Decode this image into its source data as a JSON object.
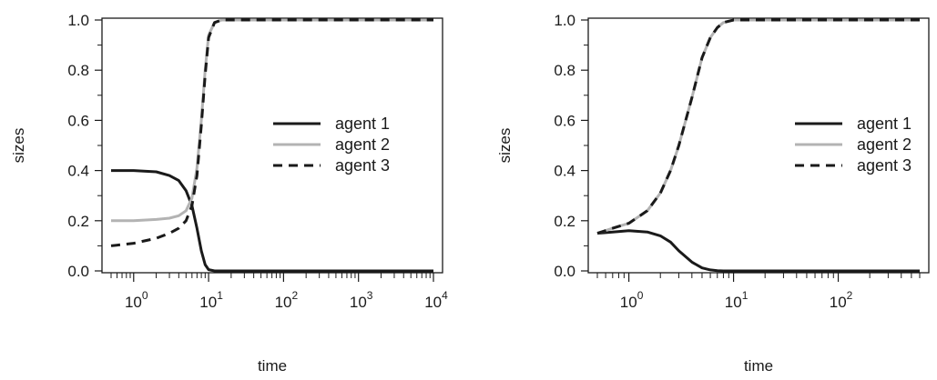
{
  "chart_data": [
    {
      "type": "line",
      "xlabel": "time",
      "ylabel": "sizes",
      "x_scale": "log10",
      "xlim": [
        0.5,
        10000
      ],
      "ylim": [
        0,
        1
      ],
      "x_major_ticks": [
        {
          "base": "10",
          "exp": "0",
          "value": 1
        },
        {
          "base": "10",
          "exp": "1",
          "value": 10
        },
        {
          "base": "10",
          "exp": "2",
          "value": 100
        },
        {
          "base": "10",
          "exp": "3",
          "value": 1000
        },
        {
          "base": "10",
          "exp": "4",
          "value": 10000
        }
      ],
      "y_ticks": [
        "0.0",
        "0.2",
        "0.4",
        "0.6",
        "0.8",
        "1.0"
      ],
      "legend_position": "right-middle",
      "series": [
        {
          "name": "agent 1",
          "color": "#1a1a1a",
          "dash": "solid",
          "x": [
            0.5,
            1,
            2,
            3,
            4,
            5,
            6,
            7,
            8,
            9,
            10,
            12,
            15,
            20,
            100,
            1000,
            10000
          ],
          "y": [
            0.4,
            0.4,
            0.395,
            0.38,
            0.36,
            0.32,
            0.26,
            0.17,
            0.08,
            0.025,
            0.005,
            0.0,
            0.0,
            0.0,
            0.0,
            0.0,
            0.0
          ]
        },
        {
          "name": "agent 2",
          "color": "#b3b3b3",
          "dash": "solid",
          "x": [
            0.5,
            1,
            2,
            3,
            4,
            5,
            6,
            7,
            8,
            9,
            10,
            12,
            15,
            20,
            100,
            1000,
            10000
          ],
          "y": [
            0.2,
            0.2,
            0.205,
            0.21,
            0.22,
            0.24,
            0.29,
            0.41,
            0.6,
            0.8,
            0.94,
            0.99,
            1.0,
            1.0,
            1.0,
            1.0,
            1.0
          ]
        },
        {
          "name": "agent 3",
          "color": "#1a1a1a",
          "dash": "dashed",
          "x": [
            0.5,
            1,
            2,
            3,
            4,
            5,
            6,
            7,
            8,
            9,
            10,
            12,
            15,
            20,
            100,
            1000,
            10000
          ],
          "y": [
            0.1,
            0.11,
            0.13,
            0.15,
            0.17,
            0.2,
            0.26,
            0.38,
            0.58,
            0.78,
            0.93,
            0.99,
            1.0,
            1.0,
            1.0,
            1.0,
            1.0
          ]
        }
      ]
    },
    {
      "type": "line",
      "xlabel": "time",
      "ylabel": "sizes",
      "x_scale": "log10",
      "xlim": [
        0.5,
        600
      ],
      "ylim": [
        0,
        1
      ],
      "x_major_ticks": [
        {
          "base": "10",
          "exp": "0",
          "value": 1
        },
        {
          "base": "10",
          "exp": "1",
          "value": 10
        },
        {
          "base": "10",
          "exp": "2",
          "value": 100
        }
      ],
      "y_ticks": [
        "0.0",
        "0.2",
        "0.4",
        "0.6",
        "0.8",
        "1.0"
      ],
      "legend_position": "right-middle",
      "series": [
        {
          "name": "agent 1",
          "color": "#1a1a1a",
          "dash": "solid",
          "x": [
            0.5,
            0.7,
            1,
            1.5,
            2,
            2.5,
            3,
            4,
            5,
            6,
            7,
            8,
            10,
            20,
            100,
            600
          ],
          "y": [
            0.15,
            0.155,
            0.16,
            0.155,
            0.14,
            0.115,
            0.08,
            0.035,
            0.012,
            0.004,
            0.001,
            0.0,
            0.0,
            0.0,
            0.0,
            0.0
          ]
        },
        {
          "name": "agent 2",
          "color": "#b3b3b3",
          "dash": "solid",
          "x": [
            0.5,
            0.7,
            1,
            1.5,
            2,
            2.5,
            3,
            4,
            5,
            6,
            7,
            8,
            10,
            20,
            100,
            600
          ],
          "y": [
            0.15,
            0.17,
            0.19,
            0.24,
            0.31,
            0.4,
            0.5,
            0.69,
            0.85,
            0.93,
            0.97,
            0.99,
            1.0,
            1.0,
            1.0,
            1.0
          ]
        },
        {
          "name": "agent 3",
          "color": "#1a1a1a",
          "dash": "dashed",
          "x": [
            0.5,
            0.7,
            1,
            1.5,
            2,
            2.5,
            3,
            4,
            5,
            6,
            7,
            8,
            10,
            20,
            100,
            600
          ],
          "y": [
            0.15,
            0.17,
            0.19,
            0.24,
            0.31,
            0.4,
            0.5,
            0.69,
            0.85,
            0.93,
            0.97,
            0.99,
            1.0,
            1.0,
            1.0,
            1.0
          ]
        }
      ]
    }
  ]
}
